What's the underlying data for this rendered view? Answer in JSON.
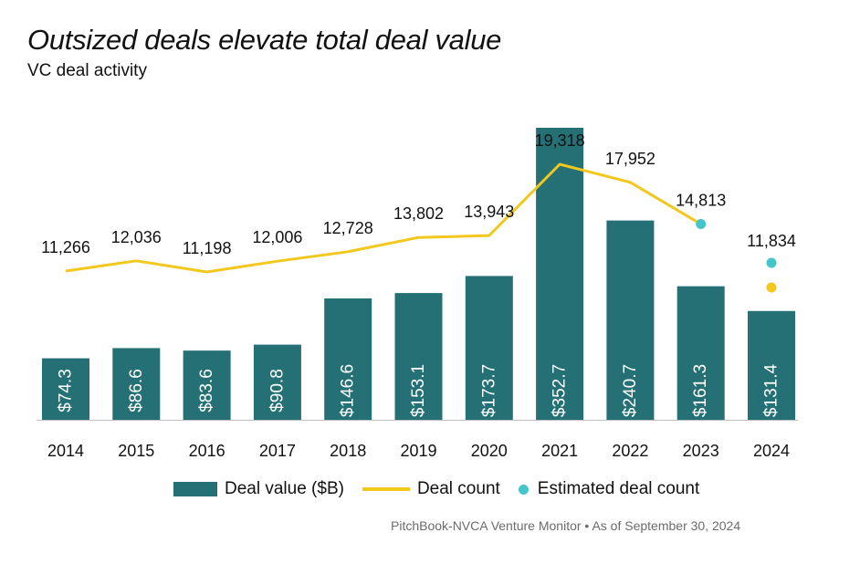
{
  "title": "Outsized deals elevate total deal value",
  "subtitle": "VC deal activity",
  "source": "PitchBook-NVCA Venture Monitor  •  As of September 30, 2024",
  "colors": {
    "bar": "#257075",
    "line": "#f2c81e",
    "estimate": "#45c5c9"
  },
  "chart_data": {
    "type": "bar",
    "categories": [
      "2014",
      "2015",
      "2016",
      "2017",
      "2018",
      "2019",
      "2020",
      "2021",
      "2022",
      "2023",
      "2024"
    ],
    "series": [
      {
        "name": "Deal value ($B)",
        "type": "bar",
        "values": [
          74.3,
          86.6,
          83.6,
          90.8,
          146.6,
          153.1,
          173.7,
          352.7,
          240.7,
          161.3,
          131.4
        ],
        "labels": [
          "$74.3",
          "$86.6",
          "$83.6",
          "$90.8",
          "$146.6",
          "$153.1",
          "$173.7",
          "$352.7",
          "$240.7",
          "$161.3",
          "$131.4"
        ]
      },
      {
        "name": "Deal count",
        "type": "line",
        "values": [
          11266,
          12036,
          11198,
          12006,
          12728,
          13802,
          13943,
          19318,
          17952,
          14813,
          null
        ],
        "labels": [
          "11,266",
          "12,036",
          "11,198",
          "12,006",
          "12,728",
          "13,802",
          "13,943",
          "19,318",
          "17,952",
          "14,813",
          ""
        ]
      },
      {
        "name": "Estimated deal count",
        "type": "scatter",
        "values": [
          null,
          null,
          null,
          null,
          null,
          null,
          null,
          null,
          null,
          14813,
          11834
        ],
        "labels": [
          "",
          "",
          "",
          "",
          "",
          "",
          "",
          "",
          "",
          "",
          "11,834"
        ]
      }
    ],
    "grid": false,
    "legend_position": "bottom"
  },
  "legend": {
    "items": [
      "Deal value ($B)",
      "Deal count",
      "Estimated deal count"
    ]
  }
}
